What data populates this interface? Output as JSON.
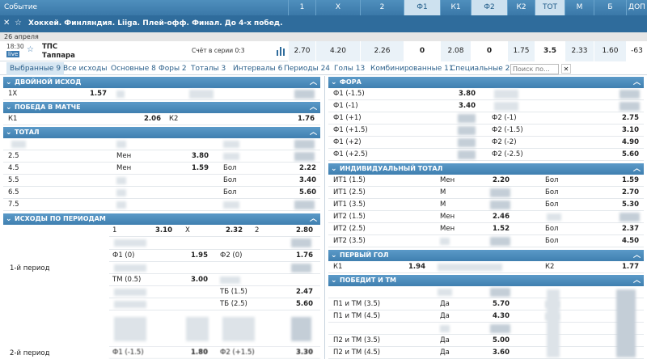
{
  "header": {
    "event_col": "Событие",
    "cols": [
      "1",
      "X",
      "2",
      "Ф1",
      "К1",
      "Ф2",
      "К2",
      "ТОТ",
      "М",
      "Б",
      "ДОП"
    ]
  },
  "event": {
    "title": "Хоккей. Финляндия. Liiga. Плей-офф. Финал. До 4-х побед.",
    "date": "26 апреля",
    "time": "18:30",
    "live_badge": "live",
    "team1": "ТПС",
    "team2": "Таппара",
    "series_score": "Счёт в серии 0:3",
    "odds": [
      "2.70",
      "4.20",
      "2.26",
      "0",
      "2.08",
      "0",
      "1.75",
      "3.5",
      "2.33",
      "1.60",
      "-63"
    ]
  },
  "tabs": [
    "Выбранные 9",
    "Все исходы",
    "Основные 8",
    "Форы 2",
    "Тоталы 3",
    "Интервалы 6",
    "Периоды 24",
    "Голы 13",
    "Комбинированные 11",
    "Специальные 2"
  ],
  "search_placeholder": "Поиск по...",
  "left": {
    "double": {
      "title": "ДВОЙНОЙ ИСХОД",
      "label": "1X",
      "odd": "1.57"
    },
    "match": {
      "title": "ПОБЕДА В МАТЧЕ",
      "k1": "К1",
      "k1_odd": "2.06",
      "k2": "К2",
      "k2_odd": "1.76"
    },
    "total": {
      "title": "ТОТАЛ",
      "rows": [
        {
          "line": "2.5",
          "a": "Мен",
          "a_odd": "3.80",
          "b": "",
          "b_odd": ""
        },
        {
          "line": "4.5",
          "a": "Мен",
          "a_odd": "1.59",
          "b": "Бол",
          "b_odd": "2.22"
        },
        {
          "line": "5.5",
          "a": "",
          "a_odd": "",
          "b": "Бол",
          "b_odd": "3.40"
        },
        {
          "line": "6.5",
          "a": "",
          "a_odd": "",
          "b": "Бол",
          "b_odd": "5.60"
        },
        {
          "line": "7.5",
          "a": "",
          "a_odd": "",
          "b": "",
          "b_odd": ""
        }
      ]
    },
    "periods": {
      "title": "ИСХОДЫ ПО ПЕРИОДАМ",
      "period1": "1-й период",
      "period2": "2-й период",
      "r1": {
        "a": "1",
        "a_odd": "3.10",
        "b": "Х",
        "b_odd": "2.32",
        "c": "2",
        "c_odd": "2.80"
      },
      "r2": {
        "a": "Ф1 (0)",
        "a_odd": "1.95",
        "b": "Ф2 (0)",
        "b_odd": "1.76"
      },
      "r3": {
        "a": "ТМ (0.5)",
        "a_odd": "3.00"
      },
      "r4": {
        "b": "ТБ (1.5)",
        "b_odd": "2.47"
      },
      "r5": {
        "b": "ТБ (2.5)",
        "b_odd": "5.60"
      },
      "r6": {
        "a": "Ф1 (-1.5)",
        "a_odd": "1.80",
        "b": "Ф2 (+1.5)",
        "b_odd": "3.30"
      }
    }
  },
  "right": {
    "fora": {
      "title": "ФОРА",
      "rows": [
        {
          "a": "Ф1 (-1.5)",
          "a_odd": "3.80",
          "b": "",
          "b_odd": ""
        },
        {
          "a": "Ф1 (-1)",
          "a_odd": "3.40",
          "b": "",
          "b_odd": ""
        },
        {
          "a": "Ф1 (+1)",
          "a_odd": "",
          "b": "Ф2 (-1)",
          "b_odd": "2.75"
        },
        {
          "a": "Ф1 (+1.5)",
          "a_odd": "",
          "b": "Ф2 (-1.5)",
          "b_odd": "3.10"
        },
        {
          "a": "Ф1 (+2)",
          "a_odd": "",
          "b": "Ф2 (-2)",
          "b_odd": "4.90"
        },
        {
          "a": "Ф1 (+2.5)",
          "a_odd": "",
          "b": "Ф2 (-2.5)",
          "b_odd": "5.60"
        }
      ]
    },
    "ind": {
      "title": "ИНДИВИДУАЛЬНЫЙ ТОТАЛ",
      "rows": [
        {
          "a": "ИТ1 (1.5)",
          "m": "Мен",
          "m_odd": "2.20",
          "b": "Бол",
          "b_odd": "1.59"
        },
        {
          "a": "ИТ1 (2.5)",
          "m": "М",
          "m_odd": "",
          "b": "Бол",
          "b_odd": "2.70"
        },
        {
          "a": "ИТ1 (3.5)",
          "m": "М",
          "m_odd": "",
          "b": "Бол",
          "b_odd": "5.30"
        },
        {
          "a": "ИТ2 (1.5)",
          "m": "Мен",
          "m_odd": "2.46",
          "b": "",
          "b_odd": ""
        },
        {
          "a": "ИТ2 (2.5)",
          "m": "Мен",
          "m_odd": "1.52",
          "b": "Бол",
          "b_odd": "2.37"
        },
        {
          "a": "ИТ2 (3.5)",
          "m": "",
          "m_odd": "",
          "b": "Бол",
          "b_odd": "4.50"
        }
      ]
    },
    "first": {
      "title": "ПЕРВЫЙ ГОЛ",
      "k1": "К1",
      "k1_odd": "1.94",
      "k2": "К2",
      "k2_odd": "1.77"
    },
    "wintm": {
      "title": "ПОБЕДИТ И ТМ",
      "rows": [
        {
          "a": "П1 и ТМ (3.5)",
          "b": "Да",
          "odd": "5.70"
        },
        {
          "a": "П1 и ТМ (4.5)",
          "b": "Да",
          "odd": "4.30"
        },
        {
          "a": "",
          "b": "",
          "odd": ""
        },
        {
          "a": "П2 и ТМ (3.5)",
          "b": "Да",
          "odd": "5.00"
        },
        {
          "a": "П2 и ТМ (4.5)",
          "b": "Да",
          "odd": "3.60"
        }
      ]
    }
  }
}
